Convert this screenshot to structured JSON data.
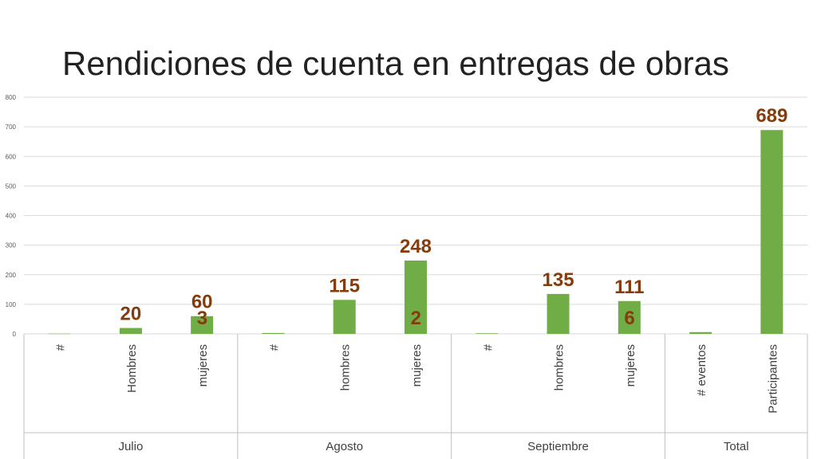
{
  "chart_data": {
    "type": "bar",
    "title": "Rendiciones de cuenta en entregas de obras",
    "ylim": [
      0,
      800
    ],
    "yticks": [
      0,
      100,
      200,
      300,
      400,
      500,
      600,
      700,
      800
    ],
    "grid": true,
    "legend": "none",
    "groups": [
      {
        "label": "Julio",
        "categories": [
          "#",
          "Hombres",
          "mujeres"
        ],
        "values": [
          1,
          20,
          60
        ]
      },
      {
        "label": "Agosto",
        "categories": [
          "#",
          "hombres",
          "mujeres"
        ],
        "values": [
          3,
          115,
          248
        ]
      },
      {
        "label": "Septiembre",
        "categories": [
          "#",
          "hombres",
          "mujeres"
        ],
        "values": [
          2,
          135,
          111
        ]
      },
      {
        "label": "Total",
        "categories": [
          "# eventos",
          "Participantes"
        ],
        "values": [
          6,
          689
        ]
      }
    ],
    "colors": {
      "bar": "#70ad47",
      "data_label": "#843c0c",
      "grid": "#d9d9d9",
      "axis": "#bfbfbf"
    }
  }
}
